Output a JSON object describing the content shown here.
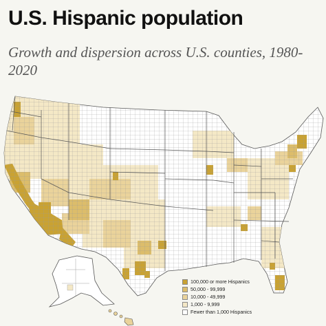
{
  "title": "U.S. Hispanic population",
  "subtitle": "Growth and dispersion across U.S. counties, 1980-2020",
  "legend": {
    "items": [
      {
        "label": "100,000 or more Hispanics",
        "color": "#c9a233"
      },
      {
        "label": "50,000 - 99,999",
        "color": "#dcbd6b"
      },
      {
        "label": "10,000 - 49,999",
        "color": "#ead39b"
      },
      {
        "label": "1,000 - 9,999",
        "color": "#f4e8c6"
      },
      {
        "label": "Fewer than 1,000 Hispanics",
        "color": "#ffffff"
      }
    ]
  },
  "colors": {
    "background": "#f6f6f1",
    "county_border": "#8f8f8f",
    "state_border": "#555555"
  }
}
